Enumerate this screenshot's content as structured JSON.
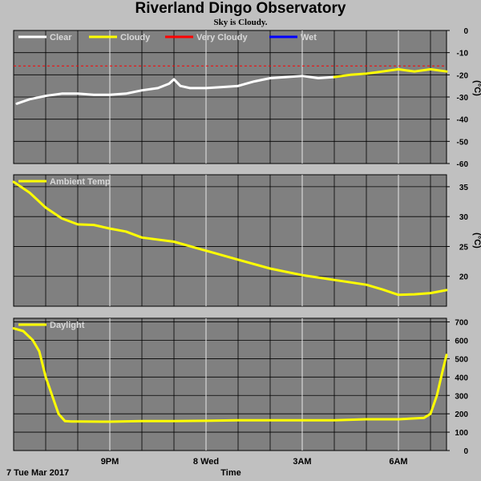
{
  "title": "Riverland Dingo Observatory",
  "subtitle": "Sky is Cloudy.",
  "chart_data": [
    {
      "type": "line",
      "name": "sky",
      "ylabel": "(°C)",
      "ylim": [
        -60,
        0
      ],
      "yticks": [
        0,
        -10,
        -20,
        -30,
        -40,
        -50,
        -60
      ],
      "x_unit": "hours since 6PM",
      "xlim": [
        0,
        13.5
      ],
      "grid": true,
      "legend": [
        {
          "label": "Clear",
          "color": "#ffffff"
        },
        {
          "label": "Cloudy",
          "color": "#ffff00"
        },
        {
          "label": "Very Cloudy",
          "color": "#ff0000"
        },
        {
          "label": "Wet",
          "color": "#0000ff"
        }
      ],
      "threshold": {
        "value": -16,
        "color": "#ff0000",
        "style": "dashed"
      },
      "series": [
        {
          "name": "Clear",
          "color": "#ffffff",
          "x": [
            0.1,
            0.5,
            1.0,
            1.5,
            2.0,
            2.5,
            3.0,
            3.5,
            4.0,
            4.5,
            4.85,
            5.0,
            5.2,
            5.5,
            6.0,
            6.5,
            7.0,
            7.5,
            8.0,
            8.5,
            9.0,
            9.5,
            10.0
          ],
          "y": [
            -33,
            -31,
            -29.5,
            -28.5,
            -28.5,
            -29,
            -29,
            -28.5,
            -27,
            -26,
            -24,
            -22,
            -25,
            -26,
            -26,
            -25.5,
            -25,
            -23,
            -21.5,
            -21,
            -20.5,
            -21.5,
            -21
          ]
        },
        {
          "name": "Cloudy",
          "color": "#ffff00",
          "x": [
            10.0,
            10.5,
            11.0,
            11.5,
            12.0,
            12.5,
            13.0,
            13.5
          ],
          "y": [
            -21,
            -20,
            -19.5,
            -18.5,
            -17.5,
            -18.5,
            -17.5,
            -18.5
          ]
        }
      ]
    },
    {
      "type": "line",
      "name": "ambient",
      "ylabel": "(°C)",
      "ylim": [
        15,
        37
      ],
      "yticks": [
        35,
        30,
        25,
        20
      ],
      "xlim": [
        0,
        13.5
      ],
      "grid": true,
      "legend": [
        {
          "label": "Ambient Temp",
          "color": "#ffff00"
        }
      ],
      "series": [
        {
          "name": "Ambient Temp",
          "color": "#ffff00",
          "x": [
            0,
            0.5,
            1.0,
            1.5,
            2.0,
            2.5,
            3.0,
            3.5,
            4.0,
            5.0,
            6.0,
            7.0,
            8.0,
            9.0,
            10.0,
            11.0,
            11.5,
            12.0,
            12.5,
            13.0,
            13.5
          ],
          "y": [
            35.8,
            34.0,
            31.5,
            29.7,
            28.7,
            28.6,
            28.0,
            27.5,
            26.5,
            25.8,
            24.3,
            22.8,
            21.3,
            20.2,
            19.4,
            18.6,
            17.8,
            16.9,
            17.0,
            17.2,
            17.7
          ]
        }
      ]
    },
    {
      "type": "line",
      "name": "daylight",
      "ylim": [
        0,
        720
      ],
      "yticks": [
        700,
        600,
        500,
        400,
        300,
        200,
        100,
        0
      ],
      "xlim": [
        0,
        13.5
      ],
      "grid": true,
      "legend": [
        {
          "label": "Daylight",
          "color": "#ffff00"
        }
      ],
      "series": [
        {
          "name": "Daylight",
          "color": "#ffff00",
          "x": [
            0,
            0.3,
            0.6,
            0.8,
            1.0,
            1.2,
            1.4,
            1.6,
            1.8,
            2.0,
            3.0,
            4.0,
            5.0,
            6.0,
            7.0,
            8.0,
            9.0,
            10.0,
            11.0,
            12.0,
            12.8,
            13.0,
            13.2,
            13.4,
            13.5
          ],
          "y": [
            665,
            650,
            600,
            540,
            400,
            300,
            200,
            160,
            158,
            158,
            157,
            160,
            160,
            162,
            165,
            165,
            165,
            165,
            170,
            170,
            178,
            200,
            300,
            450,
            520
          ]
        }
      ]
    }
  ],
  "xaxis": {
    "ticks": [
      {
        "x": 3,
        "label": "9PM"
      },
      {
        "x": 6,
        "label": "8 Wed"
      },
      {
        "x": 9,
        "label": "3AM"
      },
      {
        "x": 12,
        "label": "6AM"
      }
    ],
    "start_label": "7 Tue Mar 2017",
    "xlabel": "Time"
  }
}
